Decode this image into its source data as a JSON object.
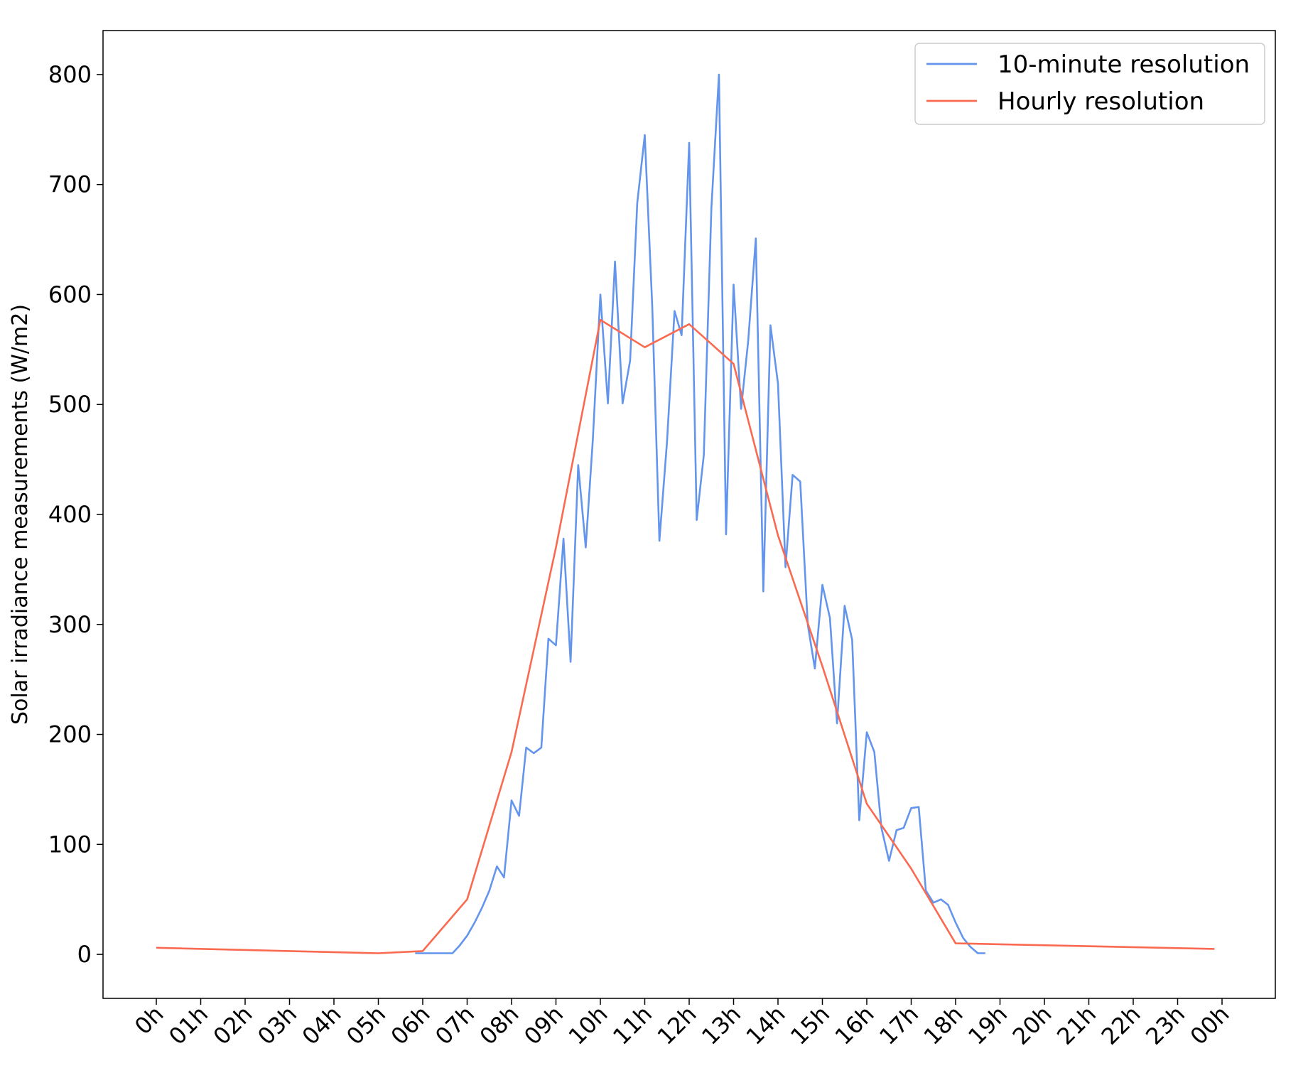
{
  "chart_data": {
    "type": "line",
    "title": "",
    "xlabel": "",
    "ylabel": "Solar irradiance measurements (W/m2)",
    "xlim": [
      -1.2,
      25.2
    ],
    "ylim": [
      -40,
      840
    ],
    "grid": false,
    "legend_position": "top-right",
    "x_ticks": [
      {
        "x": 0,
        "label": "0h"
      },
      {
        "x": 1,
        "label": "01h"
      },
      {
        "x": 2,
        "label": "02h"
      },
      {
        "x": 3,
        "label": "03h"
      },
      {
        "x": 4,
        "label": "04h"
      },
      {
        "x": 5,
        "label": "05h"
      },
      {
        "x": 6,
        "label": "06h"
      },
      {
        "x": 7,
        "label": "07h"
      },
      {
        "x": 8,
        "label": "08h"
      },
      {
        "x": 9,
        "label": "09h"
      },
      {
        "x": 10,
        "label": "10h"
      },
      {
        "x": 11,
        "label": "11h"
      },
      {
        "x": 12,
        "label": "12h"
      },
      {
        "x": 13,
        "label": "13h"
      },
      {
        "x": 14,
        "label": "14h"
      },
      {
        "x": 15,
        "label": "15h"
      },
      {
        "x": 16,
        "label": "16h"
      },
      {
        "x": 17,
        "label": "17h"
      },
      {
        "x": 18,
        "label": "18h"
      },
      {
        "x": 19,
        "label": "19h"
      },
      {
        "x": 20,
        "label": "20h"
      },
      {
        "x": 21,
        "label": "21h"
      },
      {
        "x": 22,
        "label": "22h"
      },
      {
        "x": 23,
        "label": "23h"
      },
      {
        "x": 24,
        "label": "00h"
      }
    ],
    "y_ticks": [
      0,
      100,
      200,
      300,
      400,
      500,
      600,
      700,
      800
    ],
    "series": [
      {
        "name": "10-minute resolution",
        "color": "#6495ed",
        "points": [
          [
            5.83,
            1
          ],
          [
            6.0,
            1
          ],
          [
            6.17,
            1
          ],
          [
            6.33,
            1
          ],
          [
            6.5,
            1
          ],
          [
            6.67,
            1
          ],
          [
            6.83,
            8
          ],
          [
            7.0,
            17
          ],
          [
            7.17,
            29
          ],
          [
            7.33,
            42
          ],
          [
            7.5,
            58
          ],
          [
            7.67,
            80
          ],
          [
            7.83,
            70
          ],
          [
            8.0,
            140
          ],
          [
            8.17,
            126
          ],
          [
            8.33,
            188
          ],
          [
            8.5,
            183
          ],
          [
            8.67,
            188
          ],
          [
            8.83,
            287
          ],
          [
            9.0,
            281
          ],
          [
            9.17,
            378
          ],
          [
            9.33,
            266
          ],
          [
            9.5,
            445
          ],
          [
            9.67,
            370
          ],
          [
            9.83,
            468
          ],
          [
            10.0,
            600
          ],
          [
            10.17,
            501
          ],
          [
            10.33,
            630
          ],
          [
            10.5,
            501
          ],
          [
            10.67,
            540
          ],
          [
            10.83,
            683
          ],
          [
            11.0,
            745
          ],
          [
            11.17,
            588
          ],
          [
            11.33,
            376
          ],
          [
            11.5,
            466
          ],
          [
            11.67,
            585
          ],
          [
            11.83,
            563
          ],
          [
            12.0,
            738
          ],
          [
            12.17,
            395
          ],
          [
            12.33,
            454
          ],
          [
            12.5,
            679
          ],
          [
            12.67,
            800
          ],
          [
            12.83,
            382
          ],
          [
            13.0,
            609
          ],
          [
            13.17,
            496
          ],
          [
            13.33,
            558
          ],
          [
            13.5,
            651
          ],
          [
            13.67,
            330
          ],
          [
            13.83,
            572
          ],
          [
            14.0,
            519
          ],
          [
            14.17,
            352
          ],
          [
            14.33,
            436
          ],
          [
            14.5,
            430
          ],
          [
            14.67,
            300
          ],
          [
            14.83,
            260
          ],
          [
            15.0,
            336
          ],
          [
            15.17,
            306
          ],
          [
            15.33,
            210
          ],
          [
            15.5,
            317
          ],
          [
            15.67,
            286
          ],
          [
            15.83,
            122
          ],
          [
            16.0,
            202
          ],
          [
            16.17,
            184
          ],
          [
            16.33,
            115
          ],
          [
            16.5,
            85
          ],
          [
            16.67,
            113
          ],
          [
            16.83,
            115
          ],
          [
            17.0,
            133
          ],
          [
            17.17,
            134
          ],
          [
            17.33,
            58
          ],
          [
            17.5,
            47
          ],
          [
            17.67,
            50
          ],
          [
            17.83,
            45
          ],
          [
            18.0,
            29
          ],
          [
            18.17,
            15
          ],
          [
            18.33,
            7
          ],
          [
            18.5,
            1
          ],
          [
            18.67,
            1
          ]
        ]
      },
      {
        "name": "Hourly resolution",
        "color": "#fa6a50",
        "points": [
          [
            0,
            6
          ],
          [
            5,
            1
          ],
          [
            6,
            3
          ],
          [
            7,
            50
          ],
          [
            8,
            184
          ],
          [
            9,
            370
          ],
          [
            10,
            577
          ],
          [
            11,
            552
          ],
          [
            12,
            573
          ],
          [
            13,
            537
          ],
          [
            14,
            381
          ],
          [
            15,
            262
          ],
          [
            16,
            137
          ],
          [
            17,
            78
          ],
          [
            18,
            10
          ],
          [
            23.83,
            5
          ]
        ]
      }
    ]
  }
}
